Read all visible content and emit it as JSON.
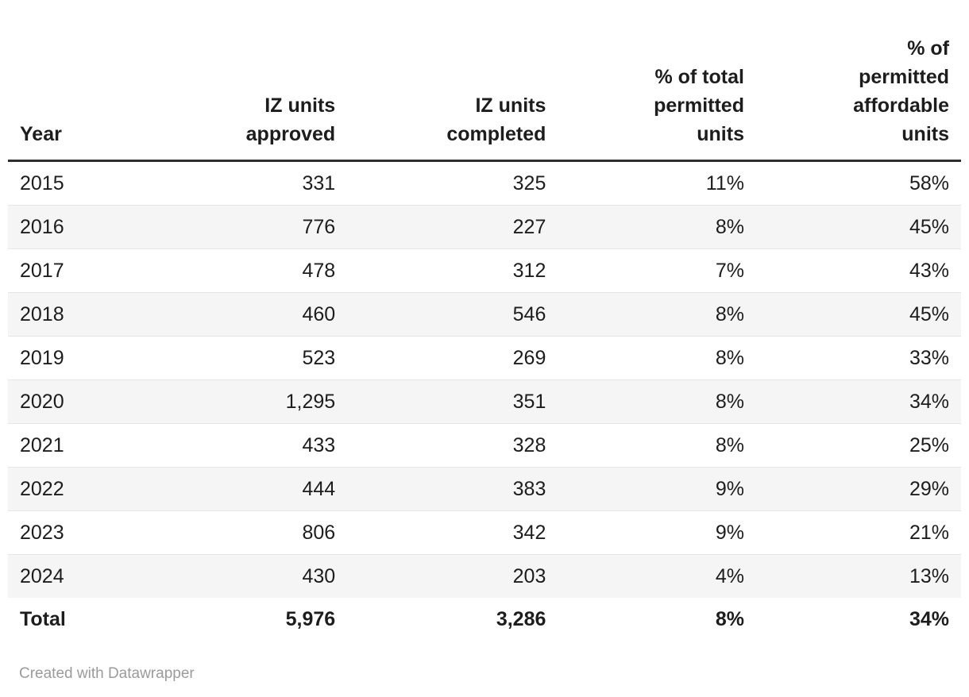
{
  "colors": {
    "text": "#1d1d1d",
    "header_border": "#2e2e2e",
    "total_border": "#333333",
    "row_divider": "#e6e6e6",
    "stripe_background": "#f5f5f5",
    "credit_text": "#9b9b9b"
  },
  "table": {
    "header_labels": [
      "Year",
      "IZ units\napproved",
      "IZ units\ncompleted",
      "% of total\npermitted\nunits",
      "% of\npermitted\naffordable\nunits"
    ]
  },
  "chart_data": {
    "type": "table",
    "columns": [
      "Year",
      "IZ units approved",
      "IZ units completed",
      "% of total permitted units",
      "% of permitted affordable units"
    ],
    "rows": [
      [
        "2015",
        "331",
        "325",
        "11%",
        "58%"
      ],
      [
        "2016",
        "776",
        "227",
        "8%",
        "45%"
      ],
      [
        "2017",
        "478",
        "312",
        "7%",
        "43%"
      ],
      [
        "2018",
        "460",
        "546",
        "8%",
        "45%"
      ],
      [
        "2019",
        "523",
        "269",
        "8%",
        "33%"
      ],
      [
        "2020",
        "1,295",
        "351",
        "8%",
        "34%"
      ],
      [
        "2021",
        "433",
        "328",
        "8%",
        "25%"
      ],
      [
        "2022",
        "444",
        "383",
        "9%",
        "29%"
      ],
      [
        "2023",
        "806",
        "342",
        "9%",
        "21%"
      ],
      [
        "2024",
        "430",
        "203",
        "4%",
        "13%"
      ]
    ],
    "total_row": [
      "Total",
      "5,976",
      "3,286",
      "8%",
      "34%"
    ]
  },
  "footer": {
    "credit": "Created with Datawrapper"
  }
}
